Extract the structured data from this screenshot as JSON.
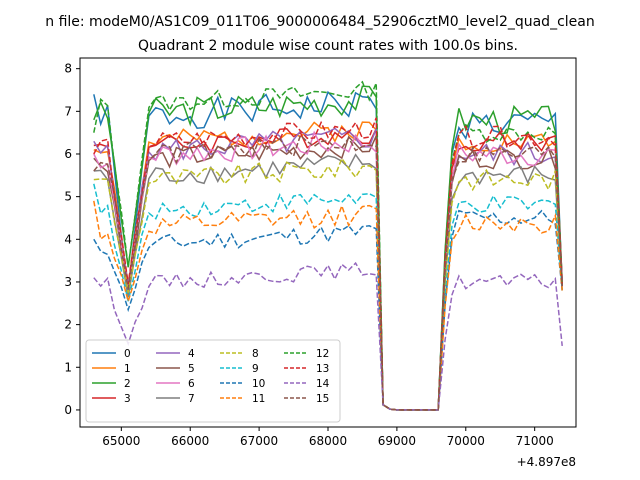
{
  "chart_data": {
    "type": "line",
    "suptitle": "n file: modeM0/AS1C09_011T06_9000006484_52906cztM0_level2_quad_clean",
    "title": "Quadrant 2 module wise count rates with 100.0s bins.",
    "xlabel": "",
    "ylabel": "",
    "x_offset_label": "+4.897e8",
    "xlim": [
      64400,
      71600
    ],
    "ylim": [
      -0.4,
      8.25
    ],
    "x_ticks": [
      65000,
      66000,
      67000,
      68000,
      69000,
      70000,
      71000
    ],
    "x_tick_labels": [
      "65000",
      "66000",
      "67000",
      "68000",
      "69000",
      "70000",
      "71000"
    ],
    "y_ticks": [
      0,
      1,
      2,
      3,
      4,
      5,
      6,
      7,
      8
    ],
    "y_tick_labels": [
      "0",
      "1",
      "2",
      "3",
      "4",
      "5",
      "6",
      "7",
      "8"
    ],
    "grid": false,
    "legend": {
      "position": "lower-left",
      "columns": 4
    },
    "segments": [
      {
        "x_start": 64600,
        "x_end": 68700,
        "step": 100
      },
      {
        "x_start": 69700,
        "x_end": 71400,
        "step": 100
      }
    ],
    "gap_x": [
      68800,
      68900,
      69000,
      69100,
      69200,
      69300,
      69400,
      69500,
      69600
    ],
    "gap_values": [
      0.12,
      0.02,
      0,
      0,
      0,
      0,
      0,
      0,
      0
    ],
    "series": [
      {
        "name": "0",
        "color": "#1f77b4",
        "dash": "solid",
        "pre": 6.8,
        "post": 6.7,
        "noise": 0.35,
        "dip": 2.8,
        "start": 7.4,
        "end": 2.9,
        "seed": 1
      },
      {
        "name": "1",
        "color": "#ff7f0e",
        "dash": "solid",
        "pre": 6.2,
        "post": 6.3,
        "noise": 0.25,
        "dip": 2.9,
        "start": 6.1,
        "end": 2.9,
        "seed": 2
      },
      {
        "name": "2",
        "color": "#2ca02c",
        "dash": "solid",
        "pre": 6.9,
        "post": 6.8,
        "noise": 0.35,
        "dip": 3.3,
        "start": 6.8,
        "end": 3.0,
        "seed": 3
      },
      {
        "name": "3",
        "color": "#d62728",
        "dash": "solid",
        "pre": 6.1,
        "post": 6.3,
        "noise": 0.25,
        "dip": 2.8,
        "start": 6.2,
        "end": 3.0,
        "seed": 4
      },
      {
        "name": "4",
        "color": "#9467bd",
        "dash": "solid",
        "pre": 6.0,
        "post": 6.0,
        "noise": 0.3,
        "dip": 2.9,
        "start": 6.3,
        "end": 3.0,
        "seed": 5
      },
      {
        "name": "5",
        "color": "#8c564b",
        "dash": "solid",
        "pre": 5.8,
        "post": 5.9,
        "noise": 0.25,
        "dip": 2.7,
        "start": 5.9,
        "end": 2.9,
        "seed": 6
      },
      {
        "name": "6",
        "color": "#e377c2",
        "dash": "solid",
        "pre": 5.9,
        "post": 6.0,
        "noise": 0.3,
        "dip": 2.8,
        "start": 6.0,
        "end": 2.9,
        "seed": 7
      },
      {
        "name": "7",
        "color": "#7f7f7f",
        "dash": "solid",
        "pre": 5.4,
        "post": 5.5,
        "noise": 0.25,
        "dip": 2.6,
        "start": 5.6,
        "end": 2.9,
        "seed": 8
      },
      {
        "name": "8",
        "color": "#bcbd22",
        "dash": "dashed",
        "pre": 5.3,
        "post": 5.4,
        "noise": 0.25,
        "dip": 2.7,
        "start": 5.4,
        "end": 2.8,
        "seed": 9
      },
      {
        "name": "9",
        "color": "#17becf",
        "dash": "dashed",
        "pre": 4.6,
        "post": 4.8,
        "noise": 0.22,
        "dip": 2.5,
        "start": 5.3,
        "end": 2.8,
        "seed": 10
      },
      {
        "name": "10",
        "color": "#1f77b4",
        "dash": "dashed",
        "pre": 3.8,
        "post": 4.5,
        "noise": 0.22,
        "dip": 2.3,
        "start": 4.0,
        "end": 2.8,
        "seed": 11
      },
      {
        "name": "11",
        "color": "#ff7f0e",
        "dash": "dashed",
        "pre": 4.2,
        "post": 4.4,
        "noise": 0.25,
        "dip": 2.5,
        "start": 4.9,
        "end": 2.8,
        "seed": 12
      },
      {
        "name": "12",
        "color": "#2ca02c",
        "dash": "dashed",
        "pre": 7.1,
        "post": 6.5,
        "noise": 0.22,
        "dip": 3.3,
        "start": 6.5,
        "end": 2.9,
        "seed": 13
      },
      {
        "name": "13",
        "color": "#d62728",
        "dash": "dashed",
        "pre": 6.2,
        "post": 6.4,
        "noise": 0.25,
        "dip": 2.9,
        "start": 6.0,
        "end": 2.9,
        "seed": 14
      },
      {
        "name": "14",
        "color": "#9467bd",
        "dash": "dashed",
        "pre": 2.9,
        "post": 3.0,
        "noise": 0.18,
        "dip": 1.5,
        "start": 3.1,
        "end": 1.5,
        "seed": 15
      },
      {
        "name": "15",
        "color": "#8c564b",
        "dash": "dashed",
        "pre": 5.9,
        "post": 6.0,
        "noise": 0.25,
        "dip": 2.8,
        "start": 5.6,
        "end": 2.9,
        "seed": 16
      }
    ]
  }
}
